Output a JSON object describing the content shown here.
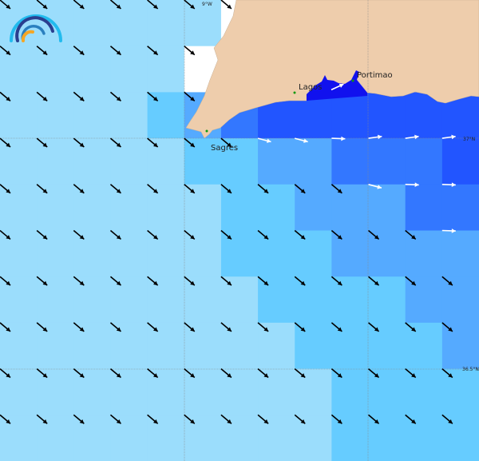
{
  "colors": {
    "L": "#9bddfc",
    "C": "#66ccff",
    "M": "#55aaff",
    "B": "#3377ff",
    "D": "#2255ff",
    "X": "#ffffff",
    "land": "#eecdac",
    "estuary": "#1111ee",
    "city_dot": "#119911"
  },
  "cells": [
    "LLLLLLXXXXXXX",
    "LLLLLXXXXXXXX",
    "LLLLCMBDDDDDD",
    "LLLLLCCMMBBBD",
    "LLLLLLCCMMMBB",
    "LLLLLLCCCMMMM",
    "LLLLLLLCCCCMM",
    "LLLLLLLLCCCCM",
    "LLLLLLLLLCCCC",
    "LLLLLLLLLCCCC"
  ],
  "arrow_types": {
    "k": {
      "color": "#000000",
      "angle": 40
    },
    "a": {
      "color": "#ffffff",
      "angle": 15
    },
    "e": {
      "color": "#ffffff",
      "angle": 2
    },
    "b": {
      "color": "#ffffff",
      "angle": -8
    },
    "u": {
      "color": "#ffffff",
      "angle": -25
    }
  },
  "arrows": [
    "kkkkkkk......",
    "kkkkkk.......",
    "kkkkkk...u...",
    "kkkkkkkaaebbb",
    "kkkkkkkkkkaee",
    "kkkkkkkkkkkke",
    "kkkkkkkkkkkkk",
    "kkkkkkkkkkkkk",
    "kkkkkkkkkkkkk",
    "kkkkkkkkkkkkk"
  ],
  "cities": [
    {
      "name": "Sagres"
    },
    {
      "name": "Lagos"
    },
    {
      "name": "Portimao"
    }
  ],
  "grid_labels": {
    "lon_9w": "9°W",
    "lat_37n": "37°N",
    "lat_36_5n": "36.5°N"
  },
  "logo": "wave-logo-icon"
}
